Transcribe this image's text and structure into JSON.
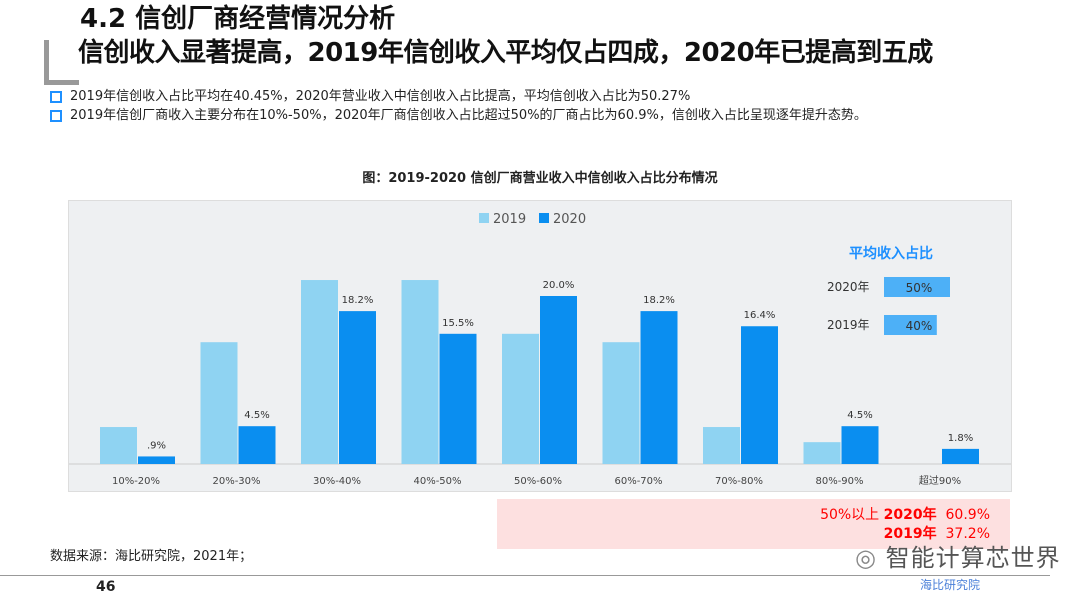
{
  "header": {
    "title": "4.2 信创厂商经营情况分析",
    "subtitle": "信创收入显著提高，2019年信创收入平均仅占四成，2020年已提高到五成"
  },
  "bullets": [
    "2019年信创收入占比平均在40.45%，2020年营业收入中信创收入占比提高，平均信创收入占比为50.27%",
    "2019年信创厂商收入主要分布在10%-50%，2020年厂商信创收入占比超过50%的厂商占比为60.9%，信创收入占比呈现逐年提升态势。"
  ],
  "chart_data": {
    "type": "bar",
    "title": "图：2019-2020 信创厂商营业收入中信创收入占比分布情况",
    "categories": [
      "10%-20%",
      "20%-30%",
      "30%-40%",
      "40%-50%",
      "50%-60%",
      "60%-70%",
      "70%-80%",
      "80%-90%",
      "超过90%"
    ],
    "series": [
      {
        "name": "2019",
        "color": "#8fd3f2",
        "values": [
          4.4,
          14.5,
          21.9,
          21.9,
          15.5,
          14.5,
          4.4,
          2.6,
          0
        ],
        "labels": [
          "",
          "",
          "",
          "",
          "",
          "",
          "",
          "",
          ""
        ]
      },
      {
        "name": "2020",
        "color": "#0a8ef0",
        "values": [
          0.9,
          4.5,
          18.2,
          15.5,
          20.0,
          18.2,
          16.4,
          4.5,
          1.8
        ],
        "labels": [
          ".9%",
          "4.5%",
          "18.2%",
          "15.5%",
          "20.0%",
          "18.2%",
          "16.4%",
          "4.5%",
          "1.8%"
        ]
      }
    ],
    "ylim": [
      0,
      22
    ],
    "legend": "top-center",
    "grid": false,
    "inset": {
      "title": "平均收入占比",
      "rows": [
        {
          "label": "2020年",
          "value": 50,
          "text": "50%"
        },
        {
          "label": "2019年",
          "value": 40,
          "text": "40%"
        }
      ]
    }
  },
  "callout": {
    "line1_prefix": "50%以上",
    "line1_year": "2020年",
    "line1_value": "60.9%",
    "line2_year": "2019年",
    "line2_value": "37.2%"
  },
  "footer": {
    "source": "数据来源：海比研究院，2021年；",
    "page": "46",
    "watermark": "智能计算芯世界",
    "logo": "海比研究院"
  }
}
